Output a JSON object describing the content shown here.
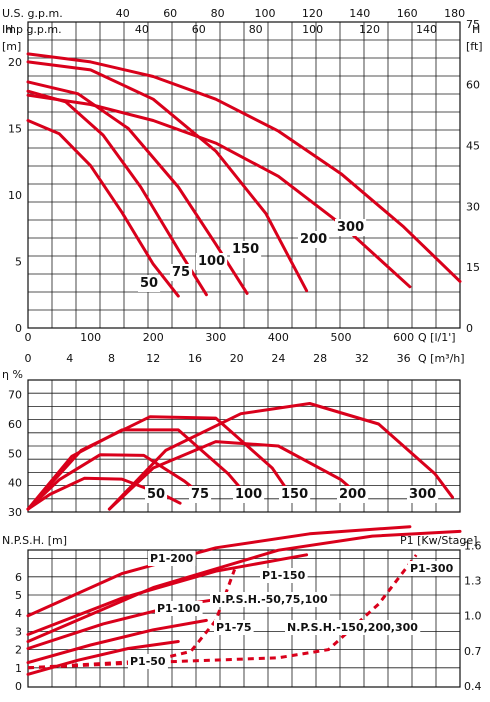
{
  "colors": {
    "curve": "#d9001b",
    "grid": "#1a1a1a",
    "background": "#ffffff"
  },
  "chart_data": [
    {
      "type": "line",
      "name": "head",
      "xlabel": "Q [l/1']",
      "ylabel_left": "H [m]",
      "ylabel_right": "H [ft]",
      "xlim": [
        0,
        650
      ],
      "ylim": [
        0,
        23
      ],
      "x_ticks": [
        0,
        100,
        200,
        300,
        400,
        500,
        600
      ],
      "y_ticks": [
        0,
        5,
        10,
        15,
        20
      ],
      "right_ticks": [
        0,
        15,
        30,
        45,
        60,
        75
      ],
      "top_axis_us": {
        "label": "U.S. g.p.m.",
        "ticks": [
          20,
          40,
          60,
          80,
          100,
          120,
          140,
          160,
          180
        ]
      },
      "top_axis_imp": {
        "label": "Imp g.p.m.",
        "ticks": [
          20,
          40,
          60,
          80,
          100,
          120,
          140
        ]
      },
      "bottom_axis": {
        "label": "Q [m³/h]",
        "ticks": [
          0,
          4,
          8,
          12,
          16,
          20,
          24,
          28,
          32,
          36
        ]
      },
      "grid": true,
      "series": [
        {
          "name": "50",
          "x": [
            0,
            50,
            100,
            150,
            200,
            240
          ],
          "y": [
            15.6,
            14.6,
            12.2,
            8.7,
            4.8,
            2.4
          ]
        },
        {
          "name": "75",
          "x": [
            0,
            60,
            120,
            180,
            240,
            285
          ],
          "y": [
            17.8,
            17.0,
            14.5,
            10.6,
            5.9,
            2.5
          ]
        },
        {
          "name": "100",
          "x": [
            0,
            80,
            160,
            240,
            300,
            350
          ],
          "y": [
            18.5,
            17.6,
            15.0,
            10.6,
            6.3,
            2.6
          ]
        },
        {
          "name": "150",
          "x": [
            0,
            100,
            200,
            300,
            380,
            445
          ],
          "y": [
            20.0,
            19.4,
            17.2,
            13.3,
            8.6,
            2.8
          ]
        },
        {
          "name": "200",
          "x": [
            0,
            100,
            200,
            300,
            400,
            500,
            610
          ],
          "y": [
            17.5,
            16.8,
            15.6,
            13.9,
            11.4,
            7.8,
            3.1
          ]
        },
        {
          "name": "300",
          "x": [
            0,
            100,
            200,
            300,
            400,
            500,
            600,
            690
          ],
          "y": [
            20.6,
            20.0,
            18.9,
            17.2,
            14.8,
            11.6,
            7.6,
            3.5
          ]
        }
      ],
      "curve_labels": [
        "50",
        "75",
        "100",
        "150",
        "200",
        "300"
      ]
    },
    {
      "type": "line",
      "name": "efficiency",
      "ylabel": "η %",
      "ylim": [
        30,
        75
      ],
      "y_ticks": [
        30,
        40,
        50,
        60,
        70
      ],
      "grid": true,
      "series": [
        {
          "name": "50",
          "x": [
            0,
            35,
            90,
            150,
            220,
            243
          ],
          "y": [
            31,
            36,
            41.5,
            41.2,
            35.5,
            33
          ]
        },
        {
          "name": "75",
          "x": [
            0,
            50,
            115,
            185,
            250,
            282
          ],
          "y": [
            31,
            41,
            49.5,
            49.3,
            40.5,
            35
          ]
        },
        {
          "name": "100",
          "x": [
            0,
            70,
            150,
            240,
            320,
            352
          ],
          "y": [
            31,
            49,
            58,
            58,
            43,
            35
          ]
        },
        {
          "name": "150",
          "x": [
            0,
            85,
            195,
            300,
            390,
            422
          ],
          "y": [
            31,
            51,
            62.5,
            62,
            45,
            35
          ]
        },
        {
          "name": "200",
          "x": [
            130,
            200,
            300,
            400,
            500,
            532
          ],
          "y": [
            31,
            45,
            54,
            52.5,
            41,
            35
          ]
        },
        {
          "name": "300",
          "x": [
            130,
            220,
            340,
            450,
            560,
            650,
            678
          ],
          "y": [
            31,
            51,
            63.5,
            67,
            60,
            43,
            35
          ]
        }
      ],
      "curve_labels": [
        "50",
        "75",
        "100",
        "150",
        "200",
        "300"
      ]
    },
    {
      "type": "line",
      "name": "npsh-power",
      "ylabel_left": "N.P.S.H. [m]",
      "ylabel_right": "P1 [Kw/Stage]",
      "y_ticks": [
        0,
        1,
        2,
        3,
        4,
        5,
        6
      ],
      "right_ticks": [
        "0.4",
        "0.7",
        "1.0",
        "1.3",
        "1.6"
      ],
      "grid": true,
      "series": [
        {
          "name": "P1-50",
          "x": [
            0,
            80,
            160,
            240
          ],
          "y": [
            0.5,
            0.62,
            0.72,
            0.78
          ]
        },
        {
          "name": "P1-75",
          "x": [
            0,
            100,
            200,
            285
          ],
          "y": [
            0.6,
            0.75,
            0.88,
            0.96
          ]
        },
        {
          "name": "P1-100",
          "x": [
            0,
            120,
            240,
            352
          ],
          "y": [
            0.72,
            0.93,
            1.09,
            1.18
          ]
        },
        {
          "name": "P1-150",
          "x": [
            0,
            150,
            300,
            445
          ],
          "y": [
            0.84,
            1.15,
            1.38,
            1.52
          ]
        },
        {
          "name": "P1-200",
          "x": [
            0,
            150,
            300,
            450,
            610
          ],
          "y": [
            1.0,
            1.36,
            1.58,
            1.7,
            1.76
          ]
        },
        {
          "name": "P1-300",
          "x": [
            0,
            200,
            400,
            550,
            690
          ],
          "y": [
            0.78,
            1.24,
            1.56,
            1.68,
            1.72
          ]
        },
        {
          "name": "N.P.S.H.-50,75,100",
          "x": [
            0,
            100,
            200,
            260,
            300,
            330
          ],
          "y": [
            1.0,
            1.2,
            1.4,
            1.9,
            3.6,
            6.4
          ]
        },
        {
          "name": "N.P.S.H.-150,200,300",
          "x": [
            0,
            200,
            400,
            480,
            560,
            620
          ],
          "y": [
            1.0,
            1.3,
            1.55,
            2.0,
            4.5,
            7.2
          ]
        }
      ],
      "series_labels": [
        "P1-200",
        "P1-150",
        "N.P.S.H.-50,75,100",
        "P1-100",
        "P1-75",
        "N.P.S.H.-150,200,300",
        "P1-50",
        "P1-300"
      ]
    }
  ]
}
